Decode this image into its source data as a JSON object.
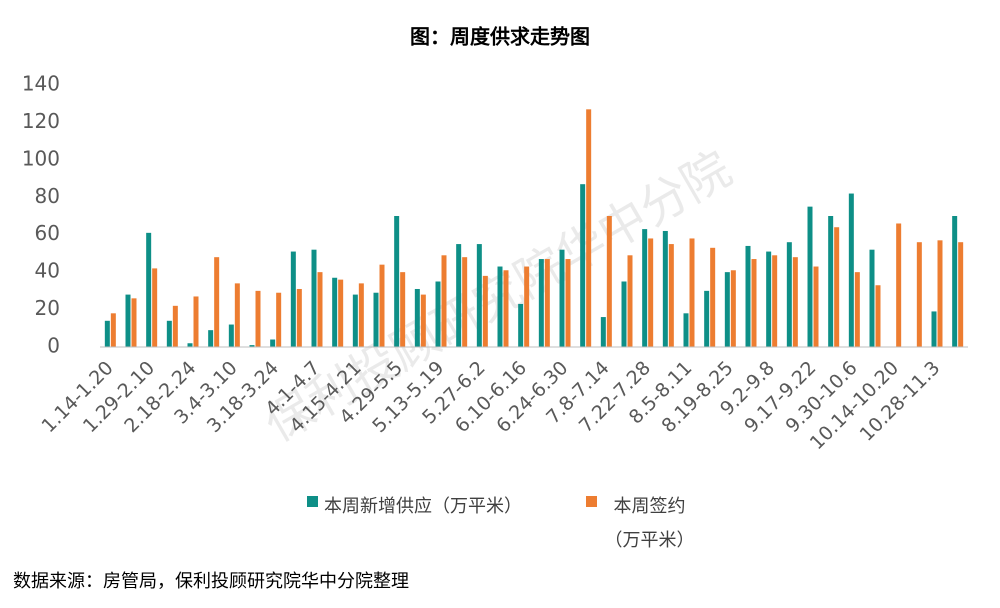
{
  "chart_data": {
    "type": "bar",
    "title": "图：周度供求走势图",
    "categories": [
      "1.14-1.20",
      null,
      "1.29-2.10",
      null,
      "2.18-2.24",
      null,
      "3.4-3.10",
      null,
      "3.18-3.24",
      null,
      "4.1-4.7",
      null,
      "4.15-4.21",
      null,
      "4.29-5.5",
      null,
      "5.13-5.19",
      null,
      "5.27-6.2",
      null,
      "6.10-6.16",
      null,
      "6.24-6.30",
      null,
      "7.8-7.14",
      null,
      "7.22-7.28",
      null,
      "8.5-8.11",
      null,
      "8.19-8.25",
      null,
      "9.2-9.8",
      null,
      "9.17-9.22",
      null,
      "9.30-10.6",
      null,
      "10.14-10.20",
      null,
      "10.28-11.3",
      null
    ],
    "series": [
      {
        "name": "本周新增供应（万平米）",
        "color": "#0e8f87",
        "values": [
          14,
          28,
          61,
          14,
          2,
          9,
          12,
          1,
          4,
          51,
          52,
          37,
          28,
          29,
          70,
          31,
          35,
          55,
          55,
          43,
          23,
          47,
          52,
          87,
          16,
          35,
          63,
          62,
          18,
          30,
          40,
          54,
          51,
          56,
          75,
          70,
          82,
          52,
          null,
          null,
          19,
          70
        ]
      },
      {
        "name": "本周签约（万平米）",
        "color": "#ed7d31",
        "values": [
          18,
          26,
          42,
          22,
          27,
          48,
          34,
          30,
          29,
          31,
          40,
          36,
          34,
          44,
          40,
          28,
          49,
          48,
          38,
          41,
          43,
          47,
          47,
          127,
          70,
          49,
          58,
          55,
          58,
          53,
          41,
          47,
          49,
          48,
          43,
          64,
          40,
          33,
          66,
          56,
          57,
          56
        ]
      }
    ],
    "ylim": [
      0,
      140
    ],
    "yticks": [
      0,
      20,
      40,
      60,
      80,
      100,
      120,
      140
    ],
    "grid": false,
    "watermark": "保利投顾研究院华中分院",
    "source": "数据来源：房管局，保利投顾研究院华中分院整理"
  }
}
